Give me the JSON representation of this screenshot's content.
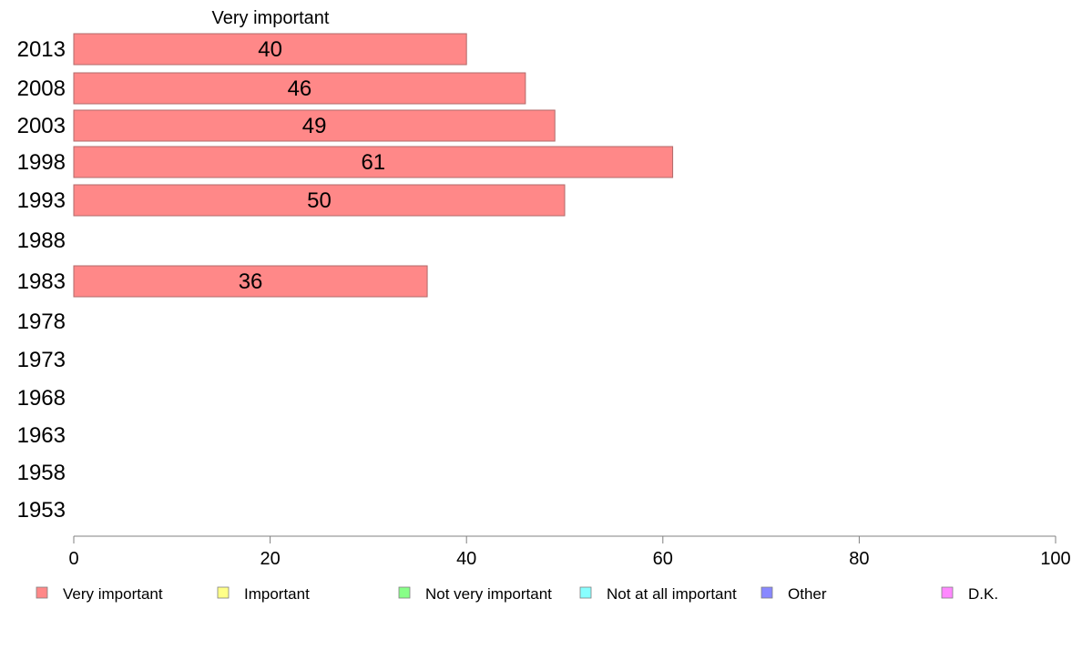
{
  "chart_data": {
    "type": "bar",
    "orientation": "horizontal",
    "series_title": "Very important",
    "categories": [
      "2013",
      "2008",
      "2003",
      "1998",
      "1993",
      "1988",
      "1983",
      "1978",
      "1973",
      "1968",
      "1963",
      "1958",
      "1953"
    ],
    "series": [
      {
        "name": "Very important",
        "values": [
          40,
          46,
          49,
          61,
          50,
          null,
          36,
          null,
          null,
          null,
          null,
          null,
          null
        ],
        "labels": [
          "40",
          "46",
          "49",
          "61",
          "50",
          "",
          "36",
          "",
          "",
          "",
          "",
          "",
          ""
        ]
      }
    ],
    "xlim": [
      0,
      100
    ],
    "xticks": [
      "0",
      "20",
      "40",
      "60",
      "80",
      "100"
    ],
    "grid": false,
    "legend_position": "bottom",
    "legend": [
      {
        "label": "Very important",
        "color": "#ff8888"
      },
      {
        "label": "Important",
        "color": "#ffff88"
      },
      {
        "label": "Not very important",
        "color": "#88ff88"
      },
      {
        "label": "Not at all important",
        "color": "#88ffff"
      },
      {
        "label": "Other",
        "color": "#8888ff"
      },
      {
        "label": "D.K.",
        "color": "#ff88ff"
      }
    ],
    "colors": {
      "bar_fill": "#ff8888",
      "bar_stroke": "#b06a6a",
      "axis": "#808080"
    }
  }
}
